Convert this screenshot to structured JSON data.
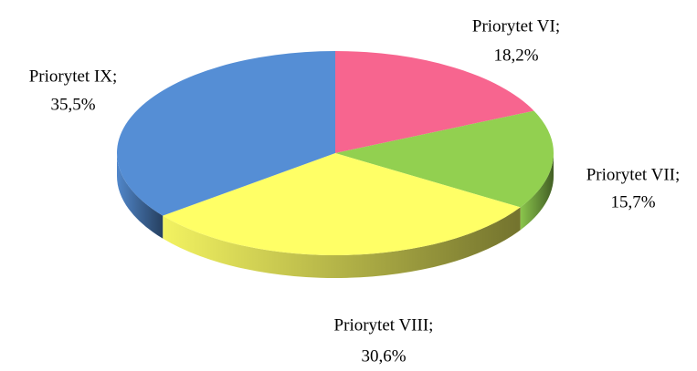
{
  "chart_data": {
    "type": "pie",
    "categories": [
      "Priorytet VI;",
      "Priorytet VII;",
      "Priorytet VIII;",
      "Priorytet IX;"
    ],
    "values": [
      18.2,
      15.7,
      30.6,
      35.5
    ],
    "value_labels": [
      "18,2%",
      "15,7%",
      "30,6%",
      "35,5%"
    ],
    "colors": [
      "#f7658f",
      "#92d050",
      "#ffff66",
      "#558ed5"
    ]
  }
}
